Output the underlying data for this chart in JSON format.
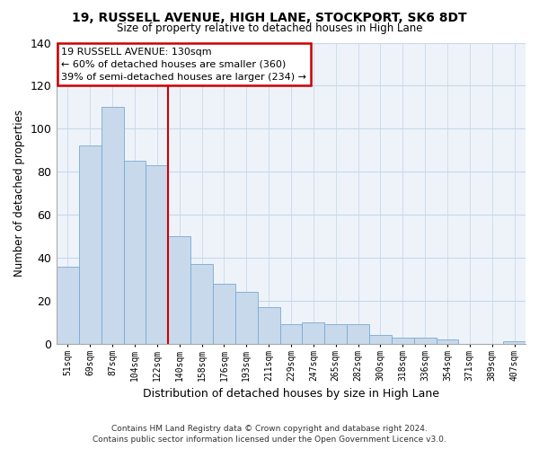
{
  "title": "19, RUSSELL AVENUE, HIGH LANE, STOCKPORT, SK6 8DT",
  "subtitle": "Size of property relative to detached houses in High Lane",
  "xlabel": "Distribution of detached houses by size in High Lane",
  "ylabel": "Number of detached properties",
  "bar_labels": [
    "51sqm",
    "69sqm",
    "87sqm",
    "104sqm",
    "122sqm",
    "140sqm",
    "158sqm",
    "176sqm",
    "193sqm",
    "211sqm",
    "229sqm",
    "247sqm",
    "265sqm",
    "282sqm",
    "300sqm",
    "318sqm",
    "336sqm",
    "354sqm",
    "371sqm",
    "389sqm",
    "407sqm"
  ],
  "bar_heights": [
    36,
    92,
    110,
    85,
    83,
    50,
    37,
    28,
    24,
    17,
    9,
    10,
    9,
    9,
    4,
    3,
    3,
    2,
    0,
    0,
    1
  ],
  "bar_color": "#c8d9ec",
  "bar_edge_color": "#7aaad0",
  "vline_color": "#cc0000",
  "vline_pos": 4.5,
  "ylim": [
    0,
    140
  ],
  "yticks": [
    0,
    20,
    40,
    60,
    80,
    100,
    120,
    140
  ],
  "annotation_lines": [
    "19 RUSSELL AVENUE: 130sqm",
    "← 60% of detached houses are smaller (360)",
    "39% of semi-detached houses are larger (234) →"
  ],
  "footer_line1": "Contains HM Land Registry data © Crown copyright and database right 2024.",
  "footer_line2": "Contains public sector information licensed under the Open Government Licence v3.0.",
  "bg_color": "#ffffff",
  "plot_bg_color": "#eef3fa",
  "grid_color": "#c8d8e8"
}
